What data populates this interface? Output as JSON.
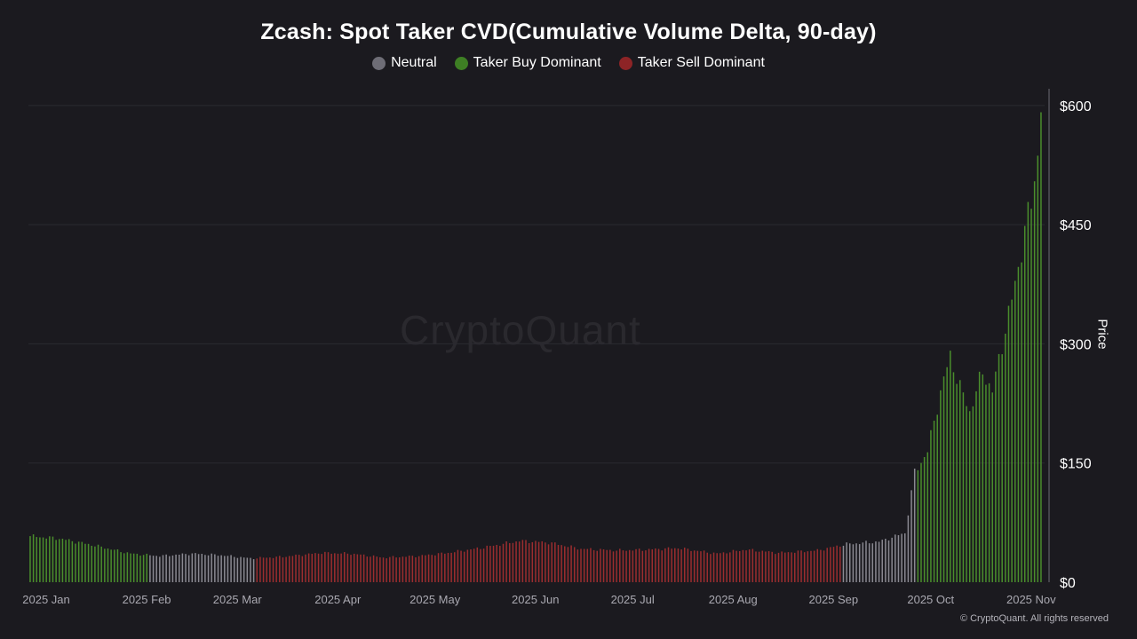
{
  "chart_data": {
    "type": "bar",
    "title": "Zcash: Spot Taker CVD(Cumulative Volume Delta, 90-day)",
    "ylabel": "Price",
    "ylim": [
      0,
      630
    ],
    "y_ticks": [
      0,
      150,
      300,
      450,
      600
    ],
    "y_tick_labels": [
      "$0",
      "$150",
      "$300",
      "$450",
      "$600"
    ],
    "y_axis_position": "right",
    "x_tick_labels": [
      "2025 Jan",
      "2025 Feb",
      "2025 Mar",
      "2025 Apr",
      "2025 May",
      "2025 Jun",
      "2025 Jul",
      "2025 Aug",
      "2025 Sep",
      "2025 Oct",
      "2025 Nov"
    ],
    "grid": true,
    "legend_position": "top-center",
    "legend": [
      {
        "key": "neutral",
        "label": "Neutral",
        "color": "#6e6d76"
      },
      {
        "key": "buy",
        "label": "Taker Buy Dominant",
        "color": "#3e7f24"
      },
      {
        "key": "sell",
        "label": "Taker Sell Dominant",
        "color": "#8d2426"
      }
    ],
    "bar_colors": {
      "neutral": "#8a8991",
      "buy": "#4a8e2c",
      "sell": "#9b2d2f"
    },
    "segments": [
      {
        "state": "buy",
        "from": "2025-01-01",
        "to": "2025-02-06",
        "start_price": 58,
        "end_price": 31
      },
      {
        "state": "neutral",
        "from": "2025-02-07",
        "to": "2025-03-11",
        "start_price": 32,
        "end_price": 30
      },
      {
        "state": "sell",
        "from": "2025-03-12",
        "to": "2025-09-08",
        "start_price": 30,
        "end_price": 47
      },
      {
        "state": "neutral",
        "from": "2025-09-09",
        "to": "2025-10-01",
        "start_price": 48,
        "end_price": 138
      },
      {
        "state": "buy",
        "from": "2025-10-02",
        "to": "2025-11-09",
        "start_price": 155,
        "end_price": 600
      }
    ],
    "price_anchors": [
      [
        "2025-01-01",
        58
      ],
      [
        "2025-01-10",
        55
      ],
      [
        "2025-01-20",
        47
      ],
      [
        "2025-02-01",
        36
      ],
      [
        "2025-02-10",
        33
      ],
      [
        "2025-02-20",
        36
      ],
      [
        "2025-03-01",
        34
      ],
      [
        "2025-03-10",
        30
      ],
      [
        "2025-03-20",
        32
      ],
      [
        "2025-04-01",
        37
      ],
      [
        "2025-04-10",
        36
      ],
      [
        "2025-04-20",
        31
      ],
      [
        "2025-05-01",
        33
      ],
      [
        "2025-05-10",
        37
      ],
      [
        "2025-05-20",
        43
      ],
      [
        "2025-06-01",
        52
      ],
      [
        "2025-06-10",
        50
      ],
      [
        "2025-06-20",
        42
      ],
      [
        "2025-07-01",
        40
      ],
      [
        "2025-07-10",
        41
      ],
      [
        "2025-07-20",
        43
      ],
      [
        "2025-08-01",
        36
      ],
      [
        "2025-08-10",
        41
      ],
      [
        "2025-08-20",
        37
      ],
      [
        "2025-09-01",
        40
      ],
      [
        "2025-09-10",
        48
      ],
      [
        "2025-09-20",
        51
      ],
      [
        "2025-09-28",
        62
      ],
      [
        "2025-10-01",
        138
      ],
      [
        "2025-10-05",
        165
      ],
      [
        "2025-10-09",
        240
      ],
      [
        "2025-10-12",
        285
      ],
      [
        "2025-10-15",
        245
      ],
      [
        "2025-10-18",
        215
      ],
      [
        "2025-10-22",
        265
      ],
      [
        "2025-10-25",
        240
      ],
      [
        "2025-10-28",
        300
      ],
      [
        "2025-10-31",
        355
      ],
      [
        "2025-11-03",
        420
      ],
      [
        "2025-11-06",
        480
      ],
      [
        "2025-11-08",
        540
      ],
      [
        "2025-11-09",
        600
      ]
    ]
  },
  "watermark": "CryptoQuant",
  "copyright": "© CryptoQuant. All rights reserved"
}
